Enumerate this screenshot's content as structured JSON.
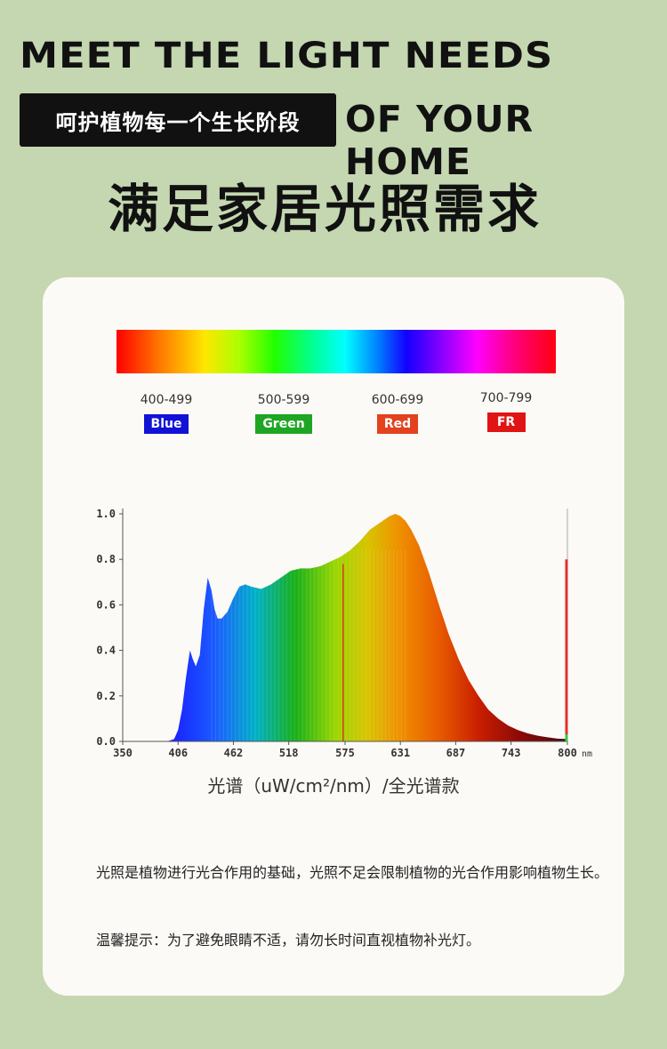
{
  "header": {
    "line1": "MEET THE LIGHT NEEDS",
    "tagline": "呵护植物每一个生长阶段",
    "line2": "OF YOUR HOME",
    "cn_title": "满足家居光照需求"
  },
  "bands": [
    {
      "range": "400-499",
      "label": "Blue",
      "color": "#1212d6"
    },
    {
      "range": "500-599",
      "label": "Green",
      "color": "#1fa524"
    },
    {
      "range": "600-699",
      "label": "Red",
      "color": "#e2421e"
    },
    {
      "range": "700-799",
      "label": "FR",
      "color": "#e01414"
    }
  ],
  "chart_data": {
    "type": "area",
    "x_ticks": [
      "350",
      "406",
      "462",
      "518",
      "575",
      "631",
      "687",
      "743",
      "800"
    ],
    "x_unit": "nm",
    "y_ticks": [
      "0.0",
      "0.2",
      "0.4",
      "0.6",
      "0.8",
      "1.0"
    ],
    "xlim": [
      350,
      800
    ],
    "ylim": [
      0,
      1.0
    ],
    "x": [
      395,
      402,
      406,
      410,
      414,
      418,
      421,
      424,
      428,
      432,
      436,
      440,
      443,
      446,
      450,
      456,
      462,
      468,
      474,
      480,
      490,
      500,
      510,
      520,
      530,
      540,
      550,
      560,
      570,
      580,
      590,
      600,
      610,
      620,
      626,
      631,
      636,
      642,
      650,
      660,
      670,
      680,
      690,
      700,
      710,
      720,
      730,
      740,
      750,
      760,
      770,
      780,
      790,
      800
    ],
    "y": [
      0.0,
      0.01,
      0.05,
      0.14,
      0.28,
      0.4,
      0.36,
      0.33,
      0.38,
      0.58,
      0.72,
      0.66,
      0.58,
      0.54,
      0.54,
      0.57,
      0.63,
      0.68,
      0.69,
      0.68,
      0.67,
      0.69,
      0.72,
      0.75,
      0.76,
      0.76,
      0.77,
      0.79,
      0.81,
      0.84,
      0.88,
      0.93,
      0.96,
      0.99,
      1.0,
      0.99,
      0.97,
      0.93,
      0.86,
      0.74,
      0.6,
      0.47,
      0.36,
      0.27,
      0.2,
      0.14,
      0.1,
      0.07,
      0.05,
      0.035,
      0.025,
      0.018,
      0.012,
      0.01
    ],
    "marker_x": 800,
    "marker_y": 0.8
  },
  "chart_caption": "光谱（uW/cm²/nm）/全光谱款",
  "description": "光照是植物进行光合作用的基础，光照不足会限制植物的光合作用影响植物生长。",
  "tip": "温馨提示：为了避免眼睛不适，请勿长时间直视植物补光灯。"
}
